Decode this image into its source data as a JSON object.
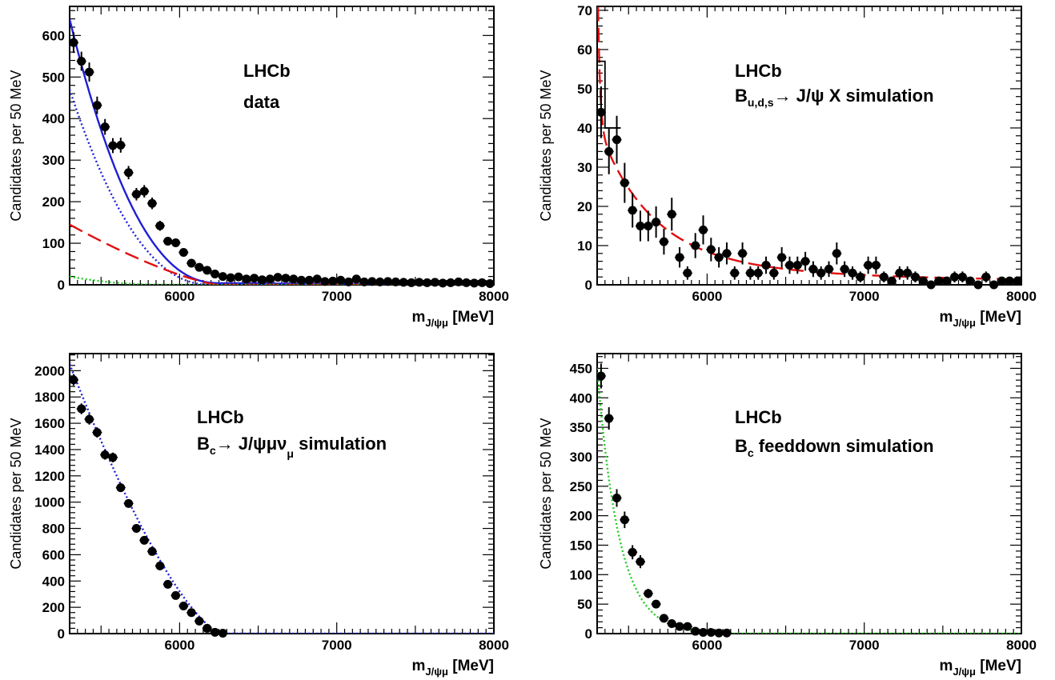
{
  "figure": {
    "x_unit": "[MeV]",
    "ylabel": "Candidates per 50 MeV"
  },
  "chart_data": [
    {
      "id": "panel-data",
      "type": "scatter",
      "xlim": [
        5300,
        8000
      ],
      "ylim": [
        0,
        670
      ],
      "xticks": [
        6000,
        7000,
        8000
      ],
      "yticks": [
        0,
        100,
        200,
        300,
        400,
        500,
        600
      ],
      "xlabel": "m",
      "xlabel_sub": "J/ψμ",
      "ylabel": "Candidates per 50 MeV",
      "annotations": [
        "LHCb",
        "data"
      ],
      "points": {
        "x": [
          5325,
          5375,
          5425,
          5475,
          5525,
          5575,
          5625,
          5675,
          5725,
          5775,
          5825,
          5875,
          5925,
          5975,
          6025,
          6075,
          6125,
          6175,
          6225,
          6275,
          6325,
          6375,
          6425,
          6475,
          6525,
          6575,
          6625,
          6675,
          6725,
          6775,
          6825,
          6875,
          6925,
          6975,
          7025,
          7075,
          7125,
          7175,
          7225,
          7275,
          7325,
          7375,
          7425,
          7475,
          7525,
          7575,
          7625,
          7675,
          7725,
          7775,
          7825,
          7875,
          7925,
          7975
        ],
        "y": [
          583,
          538,
          512,
          432,
          380,
          335,
          336,
          270,
          218,
          225,
          196,
          142,
          105,
          101,
          78,
          52,
          42,
          35,
          26,
          20,
          17,
          19,
          14,
          16,
          12,
          14,
          18,
          16,
          14,
          11,
          11,
          14,
          8,
          9,
          11,
          7,
          14,
          7,
          8,
          7,
          8,
          7,
          6,
          5,
          6,
          5,
          6,
          4,
          5,
          7,
          5,
          4,
          5,
          3
        ],
        "err": [
          25,
          23,
          23,
          21,
          19,
          18,
          18,
          16,
          15,
          15,
          14,
          12,
          10,
          10,
          9,
          7,
          6,
          6,
          5,
          4,
          4,
          4,
          4,
          4,
          3,
          4,
          4,
          4,
          4,
          3,
          3,
          4,
          3,
          3,
          3,
          3,
          4,
          3,
          3,
          3,
          3,
          3,
          2,
          2,
          2,
          2,
          2,
          2,
          2,
          3,
          2,
          2,
          2,
          2
        ]
      },
      "curves": [
        {
          "name": "total fit",
          "color": "#1f1fd6",
          "style": "solid",
          "model": "poly",
          "params": {
            "A": 630,
            "end": 6250,
            "p": 2.3,
            "floor": 8,
            "tail": 1000
          }
        },
        {
          "name": "B_c → J/ψμν component",
          "color": "#1f1fd6",
          "style": "dotted",
          "model": "poly",
          "params": {
            "A": 470,
            "end": 6200,
            "p": 2.2
          }
        },
        {
          "name": "B_u,d,s → J/ψX component",
          "color": "#e01010",
          "style": "dashed",
          "model": "poly",
          "params": {
            "A": 145,
            "end": 6250,
            "p": 1.35
          }
        },
        {
          "name": "B_c feeddown component",
          "color": "#22cc22",
          "style": "dotted",
          "model": "poly",
          "params": {
            "A": 20,
            "end": 5950,
            "p": 2.3
          }
        }
      ],
      "histogram": null
    },
    {
      "id": "panel-bkg",
      "type": "scatter",
      "xlim": [
        5300,
        8000
      ],
      "ylim": [
        0,
        71
      ],
      "xticks": [
        6000,
        7000,
        8000
      ],
      "yticks": [
        0,
        10,
        20,
        30,
        40,
        50,
        60,
        70
      ],
      "xlabel": "m",
      "xlabel_sub": "J/ψμ",
      "ylabel": "Candidates per 50 MeV",
      "annotations": [
        "LHCb",
        "B",
        "u,d,s",
        "→ J/ψ X simulation"
      ],
      "points": {
        "x": [
          5325,
          5375,
          5425,
          5475,
          5525,
          5575,
          5625,
          5675,
          5725,
          5775,
          5825,
          5875,
          5925,
          5975,
          6025,
          6075,
          6125,
          6175,
          6225,
          6275,
          6325,
          6375,
          6425,
          6475,
          6525,
          6575,
          6625,
          6675,
          6725,
          6775,
          6825,
          6875,
          6925,
          6975,
          7025,
          7075,
          7125,
          7175,
          7225,
          7275,
          7325,
          7375,
          7425,
          7475,
          7525,
          7575,
          7625,
          7675,
          7725,
          7775,
          7825,
          7875,
          7925,
          7975
        ],
        "y": [
          44,
          34,
          37,
          26,
          19,
          15,
          15,
          16,
          11,
          18,
          7,
          3,
          10,
          14,
          9,
          7,
          8,
          3,
          8,
          3,
          3,
          5,
          3,
          7,
          5,
          5,
          6,
          4,
          3,
          4,
          8,
          4,
          3,
          2,
          5,
          5,
          2,
          1,
          3,
          3,
          2,
          1,
          0,
          1,
          1,
          2,
          2,
          1,
          0,
          2,
          0,
          1,
          1,
          1
        ],
        "err": [
          6.6,
          5.8,
          6.1,
          5.1,
          4.4,
          3.9,
          3.9,
          4.0,
          3.3,
          4.2,
          2.6,
          1.7,
          3.2,
          3.7,
          3.0,
          2.6,
          2.8,
          1.7,
          2.8,
          1.7,
          1.7,
          2.2,
          1.7,
          2.6,
          2.2,
          2.2,
          2.4,
          2.0,
          1.7,
          2.0,
          2.8,
          2.0,
          1.7,
          1.4,
          2.2,
          2.2,
          1.4,
          1,
          1.7,
          1.7,
          1.4,
          1,
          0,
          1,
          1,
          1.4,
          1.4,
          1,
          0,
          1.4,
          0,
          1,
          1,
          1
        ]
      },
      "curves": [
        {
          "name": "fit",
          "color": "#e01010",
          "style": "dashed",
          "model": "bkg",
          "params": {}
        }
      ],
      "histogram": {
        "color": "#000000",
        "x": [
          5300,
          5350,
          5400
        ],
        "y": [
          57,
          40,
          40
        ]
      }
    },
    {
      "id": "panel-bc",
      "type": "scatter",
      "xlim": [
        5300,
        8000
      ],
      "ylim": [
        0,
        2130
      ],
      "xticks": [
        6000,
        7000,
        8000
      ],
      "yticks": [
        0,
        200,
        400,
        600,
        800,
        1000,
        1200,
        1400,
        1600,
        1800,
        2000
      ],
      "xlabel": "m",
      "xlabel_sub": "J/ψμ",
      "ylabel": "Candidates per 50 MeV",
      "annotations": [
        "LHCb",
        "B",
        "c",
        "→ J/ψμν",
        "μ",
        "simulation"
      ],
      "points": {
        "x": [
          5325,
          5375,
          5425,
          5475,
          5525,
          5575,
          5625,
          5675,
          5725,
          5775,
          5825,
          5875,
          5925,
          5975,
          6025,
          6075,
          6125,
          6175,
          6225,
          6275
        ],
        "y": [
          1930,
          1710,
          1630,
          1530,
          1360,
          1340,
          1110,
          990,
          800,
          710,
          625,
          515,
          375,
          290,
          210,
          160,
          95,
          40,
          10,
          3
        ],
        "err": [
          44,
          41,
          40,
          39,
          37,
          37,
          33,
          31,
          28,
          27,
          25,
          23,
          19,
          17,
          14,
          13,
          10,
          6,
          3,
          2
        ]
      },
      "curves": [
        {
          "name": "fit",
          "color": "#1f1fd6",
          "style": "dotted",
          "model": "poly",
          "params": {
            "A": 2050,
            "end": 6270,
            "p": 1.45
          }
        }
      ],
      "histogram": null
    },
    {
      "id": "panel-feeddown",
      "type": "scatter",
      "xlim": [
        5300,
        8000
      ],
      "ylim": [
        0,
        475
      ],
      "xticks": [
        6000,
        7000,
        8000
      ],
      "yticks": [
        0,
        50,
        100,
        150,
        200,
        250,
        300,
        350,
        400,
        450
      ],
      "xlabel": "m",
      "xlabel_sub": "J/ψμ",
      "ylabel": "Candidates per 50 MeV",
      "annotations": [
        "LHCb",
        "B",
        "c",
        "feeddown simulation"
      ],
      "points": {
        "x": [
          5325,
          5375,
          5425,
          5475,
          5525,
          5575,
          5625,
          5675,
          5725,
          5775,
          5825,
          5875,
          5925,
          5975,
          6025,
          6075,
          6125
        ],
        "y": [
          437,
          365,
          230,
          193,
          138,
          122,
          68,
          50,
          26,
          17,
          12,
          12,
          4,
          2,
          2,
          1,
          1
        ],
        "err": [
          21,
          19,
          15,
          14,
          12,
          11,
          8,
          7,
          5,
          4,
          3.5,
          3.5,
          2,
          1.4,
          1.4,
          1,
          1
        ]
      },
      "curves": [
        {
          "name": "fit",
          "color": "#22cc22",
          "style": "dotted",
          "model": "expo",
          "params": {
            "A": 450,
            "k": 0.0072,
            "end": 6100
          }
        }
      ],
      "histogram": null
    }
  ]
}
